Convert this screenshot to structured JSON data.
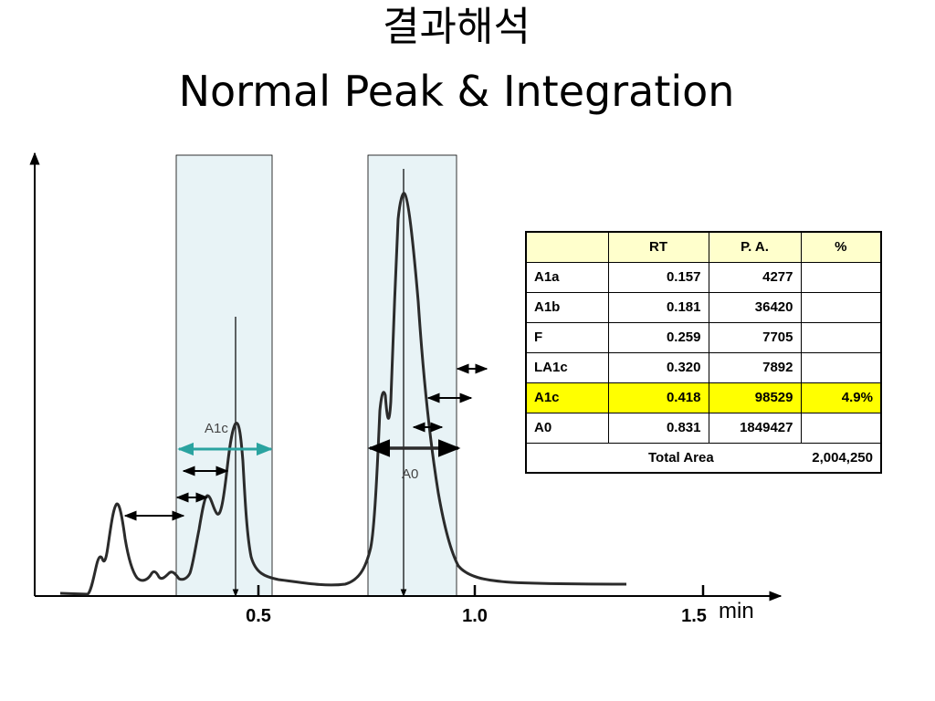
{
  "title": {
    "korean": "결과해석",
    "english": "Normal Peak & Integration"
  },
  "chart_data": {
    "type": "line",
    "x_ticks": [
      "0.5",
      "1.0",
      "1.5"
    ],
    "x_unit": "min",
    "peak_labels": [
      "A1c",
      "A0"
    ],
    "table": {
      "headers": [
        "",
        "RT",
        "P. A.",
        "%"
      ],
      "rows": [
        {
          "name": "A1a",
          "rt": "0.157",
          "pa": "4277",
          "pct": ""
        },
        {
          "name": "A1b",
          "rt": "0.181",
          "pa": "36420",
          "pct": ""
        },
        {
          "name": "F",
          "rt": "0.259",
          "pa": "7705",
          "pct": ""
        },
        {
          "name": "LA1c",
          "rt": "0.320",
          "pa": "7892",
          "pct": ""
        },
        {
          "name": "A1c",
          "rt": "0.418",
          "pa": "98529",
          "pct": "4.9%"
        },
        {
          "name": "A0",
          "rt": "0.831",
          "pa": "1849427",
          "pct": ""
        }
      ],
      "total_label": "Total Area",
      "total_value": "2,004,250"
    },
    "highlight_color": "#ffff00",
    "header_color": "#ffffcc",
    "window_color": "#e8f3f6",
    "a1c_arrow_color": "#2aa3a0"
  }
}
